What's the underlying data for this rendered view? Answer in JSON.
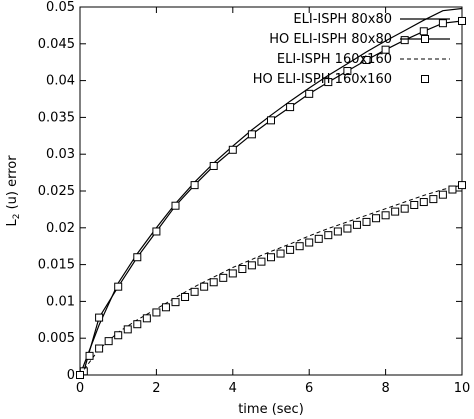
{
  "chart_data": {
    "type": "line",
    "title": "",
    "xlabel": "time (sec)",
    "ylabel_main": "L",
    "ylabel_sub": "2",
    "ylabel_rest": " (u) error",
    "xlim": [
      0,
      10
    ],
    "ylim": [
      0,
      0.05
    ],
    "xticks": [
      "0",
      "2",
      "4",
      "6",
      "8",
      "10"
    ],
    "yticks": [
      "0",
      "0.005",
      "0.01",
      "0.015",
      "0.02",
      "0.025",
      "0.03",
      "0.035",
      "0.04",
      "0.045",
      "0.05"
    ],
    "grid": false,
    "legend_position": "top-right",
    "series": [
      {
        "name": "ELI-ISPH 80x80",
        "style": "solid-line",
        "x": [
          0,
          0.5,
          1,
          1.5,
          2,
          2.5,
          3,
          3.5,
          4,
          4.5,
          5,
          5.5,
          6,
          6.5,
          7,
          7.5,
          8,
          8.5,
          9,
          9.5,
          10
        ],
        "y": [
          0,
          0.0068,
          0.0125,
          0.0165,
          0.02,
          0.0233,
          0.0262,
          0.0288,
          0.0311,
          0.0333,
          0.0353,
          0.0372,
          0.039,
          0.0407,
          0.0423,
          0.0439,
          0.0454,
          0.0468,
          0.0482,
          0.0495,
          0.0498
        ]
      },
      {
        "name": "HO ELI-ISPH 80x80",
        "style": "line-with-square-markers",
        "x": [
          0,
          0.1,
          0.5,
          1,
          1.5,
          2,
          2.5,
          3,
          3.5,
          4,
          4.5,
          5,
          5.5,
          6,
          6.5,
          7,
          7.5,
          8,
          8.5,
          9,
          9.5,
          10
        ],
        "y": [
          0,
          0.0005,
          0.0078,
          0.012,
          0.016,
          0.0195,
          0.023,
          0.0258,
          0.0284,
          0.0306,
          0.0327,
          0.0346,
          0.0364,
          0.0382,
          0.0398,
          0.0413,
          0.0428,
          0.0442,
          0.0455,
          0.0467,
          0.0478,
          0.0481
        ]
      },
      {
        "name": "ELI-ISPH 160x160",
        "style": "dashed-line",
        "x": [
          0,
          0.5,
          1,
          1.5,
          2,
          2.5,
          3,
          3.5,
          4,
          4.5,
          5,
          5.5,
          6,
          6.5,
          7,
          7.5,
          8,
          8.5,
          9,
          9.5,
          10
        ],
        "y": [
          0,
          0.0035,
          0.0058,
          0.0075,
          0.009,
          0.0105,
          0.012,
          0.0133,
          0.0146,
          0.0157,
          0.0168,
          0.0178,
          0.0189,
          0.0199,
          0.0208,
          0.0217,
          0.0226,
          0.0235,
          0.0244,
          0.0252,
          0.0258
        ]
      },
      {
        "name": "HO ELI-ISPH 160x160",
        "style": "square-markers",
        "x": [
          0,
          0.25,
          0.5,
          0.75,
          1,
          1.25,
          1.5,
          1.75,
          2,
          2.25,
          2.5,
          2.75,
          3,
          3.25,
          3.5,
          3.75,
          4,
          4.25,
          4.5,
          4.75,
          5,
          5.25,
          5.5,
          5.75,
          6,
          6.25,
          6.5,
          6.75,
          7,
          7.25,
          7.5,
          7.75,
          8,
          8.25,
          8.5,
          8.75,
          9,
          9.25,
          9.5,
          9.75,
          10
        ],
        "y": [
          0,
          0.0026,
          0.0036,
          0.0046,
          0.0054,
          0.0062,
          0.0069,
          0.0077,
          0.0085,
          0.0092,
          0.0099,
          0.0106,
          0.0113,
          0.012,
          0.0126,
          0.0132,
          0.0138,
          0.0144,
          0.0149,
          0.0154,
          0.016,
          0.0165,
          0.017,
          0.0175,
          0.018,
          0.0185,
          0.019,
          0.0195,
          0.0199,
          0.0204,
          0.0208,
          0.0213,
          0.0217,
          0.0222,
          0.0226,
          0.0231,
          0.0235,
          0.0239,
          0.0245,
          0.0252,
          0.0258
        ]
      }
    ]
  }
}
